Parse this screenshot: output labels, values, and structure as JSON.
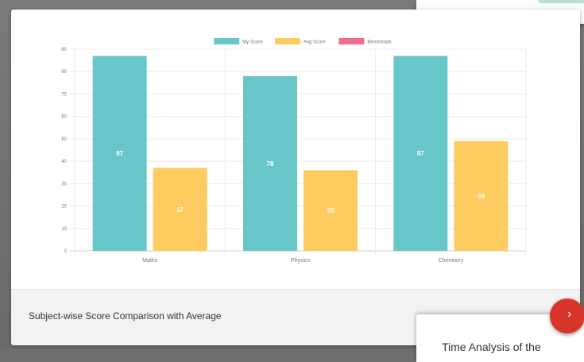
{
  "chart_data": {
    "type": "bar",
    "categories": [
      "Maths",
      "Physics",
      "Chemistry"
    ],
    "series": [
      {
        "name": "My Score",
        "values": [
          87,
          78,
          87
        ],
        "color": "#67c6c8"
      },
      {
        "name": "Avg Score",
        "values": [
          37,
          36,
          49
        ],
        "color": "#fdcb5f"
      },
      {
        "name": "Benchmark",
        "values": [
          0,
          0,
          0
        ],
        "color": "#ee6d8d"
      }
    ],
    "ylim": [
      0,
      90
    ],
    "yticks": [
      "0",
      "10",
      "20",
      "30",
      "40",
      "50",
      "60",
      "70",
      "80",
      "90"
    ],
    "legend": "top-center",
    "grid": true
  },
  "card": {
    "footer_title": "Subject-wise Score Comparison with Average"
  },
  "bottom_card": {
    "title": "Time Analysis of the"
  },
  "fab": {
    "icon": "chevron-right-icon",
    "glyph": "›"
  }
}
